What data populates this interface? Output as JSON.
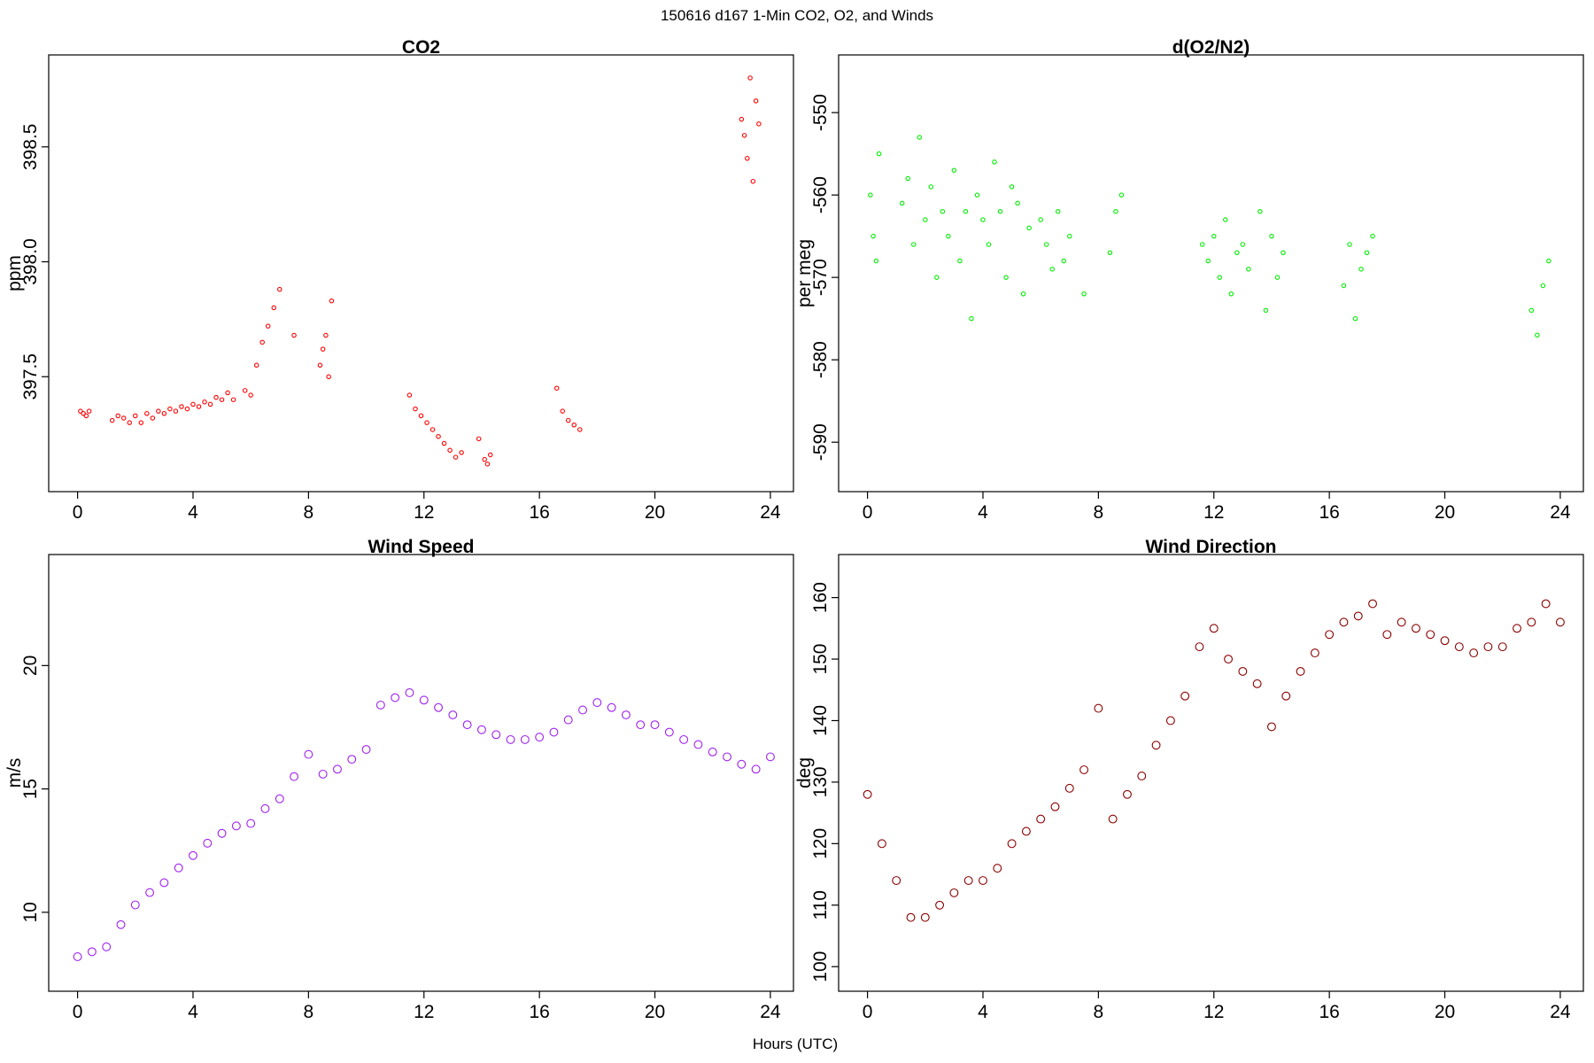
{
  "figure": {
    "title": "150616   d167   1-Min CO2, O2, and Winds",
    "xlabel": "Hours (UTC)"
  },
  "chart_data": [
    {
      "type": "scatter",
      "title": "CO2",
      "ylabel": "ppm",
      "color": "#ff0000",
      "xlim": [
        -1,
        24.8
      ],
      "ylim": [
        397.0,
        398.9
      ],
      "xticks": [
        "0",
        "4",
        "8",
        "12",
        "16",
        "20",
        "24"
      ],
      "yticks": [
        "397.5",
        "398.0",
        "398.5"
      ],
      "series": [
        {
          "x": [
            0.1,
            0.2,
            0.3,
            0.4,
            1.2,
            1.4,
            1.6,
            1.8,
            2.0,
            2.2,
            2.4,
            2.6,
            2.8,
            3.0,
            3.2,
            3.4,
            3.6,
            3.8,
            4.0,
            4.2,
            4.4,
            4.6,
            4.8,
            5.0,
            5.2,
            5.4,
            5.8,
            6.0,
            6.2,
            6.4,
            6.6,
            6.8,
            7.0,
            7.5,
            8.4,
            8.5,
            8.6,
            8.7,
            8.8,
            11.5,
            11.7,
            11.9,
            12.1,
            12.3,
            12.5,
            12.7,
            12.9,
            13.1,
            13.3,
            13.9,
            14.1,
            14.2,
            14.3,
            16.6,
            16.8,
            17.0,
            17.2,
            17.4,
            23.0,
            23.1,
            23.2,
            23.3,
            23.4,
            23.5,
            23.6
          ],
          "y": [
            397.35,
            397.34,
            397.33,
            397.35,
            397.31,
            397.33,
            397.32,
            397.3,
            397.33,
            397.3,
            397.34,
            397.32,
            397.35,
            397.34,
            397.36,
            397.35,
            397.37,
            397.36,
            397.38,
            397.37,
            397.39,
            397.38,
            397.41,
            397.4,
            397.43,
            397.4,
            397.44,
            397.42,
            397.55,
            397.65,
            397.72,
            397.8,
            397.88,
            397.68,
            397.55,
            397.62,
            397.68,
            397.5,
            397.83,
            397.42,
            397.36,
            397.33,
            397.3,
            397.27,
            397.24,
            397.21,
            397.18,
            397.15,
            397.17,
            397.23,
            397.14,
            397.12,
            397.16,
            397.45,
            397.35,
            397.31,
            397.29,
            397.27,
            398.62,
            398.55,
            398.45,
            398.8,
            398.35,
            398.7,
            398.6
          ]
        }
      ]
    },
    {
      "type": "scatter",
      "title": "d(O2/N2)",
      "ylabel": "per meg",
      "color": "#00ee00",
      "xlim": [
        -1,
        24.8
      ],
      "ylim": [
        -596,
        -543
      ],
      "xticks": [
        "0",
        "4",
        "8",
        "12",
        "16",
        "20",
        "24"
      ],
      "yticks": [
        "-590",
        "-580",
        "-570",
        "-560",
        "-550"
      ],
      "series": [
        {
          "x": [
            0.1,
            0.2,
            0.3,
            0.4,
            1.2,
            1.4,
            1.6,
            1.8,
            2.0,
            2.2,
            2.4,
            2.6,
            2.8,
            3.0,
            3.2,
            3.4,
            3.6,
            3.8,
            4.0,
            4.2,
            4.4,
            4.6,
            4.8,
            5.0,
            5.2,
            5.4,
            5.6,
            6.0,
            6.2,
            6.4,
            6.6,
            6.8,
            7.0,
            7.5,
            8.4,
            8.6,
            8.8,
            11.6,
            11.8,
            12.0,
            12.2,
            12.4,
            12.6,
            12.8,
            13.0,
            13.2,
            13.6,
            13.8,
            14.0,
            14.2,
            14.4,
            16.5,
            16.7,
            16.9,
            17.1,
            17.3,
            17.5,
            23.0,
            23.2,
            23.4,
            23.6
          ],
          "y": [
            -560,
            -565,
            -568,
            -555,
            -561,
            -558,
            -566,
            -553,
            -563,
            -559,
            -570,
            -562,
            -565,
            -557,
            -568,
            -562,
            -575,
            -560,
            -563,
            -566,
            -556,
            -562,
            -570,
            -559,
            -561,
            -572,
            -564,
            -563,
            -566,
            -569,
            -562,
            -568,
            -565,
            -572,
            -567,
            -562,
            -560,
            -566,
            -568,
            -565,
            -570,
            -563,
            -572,
            -567,
            -566,
            -569,
            -562,
            -574,
            -565,
            -570,
            -567,
            -571,
            -566,
            -575,
            -569,
            -567,
            -565,
            -574,
            -577,
            -571,
            -568
          ]
        }
      ]
    },
    {
      "type": "scatter",
      "title": "Wind Speed",
      "ylabel": "m/s",
      "color": "#a020f0",
      "xlim": [
        -1,
        24.8
      ],
      "ylim": [
        6.8,
        24.5
      ],
      "xticks": [
        "0",
        "4",
        "8",
        "12",
        "16",
        "20",
        "24"
      ],
      "yticks": [
        "10",
        "15",
        "20"
      ],
      "series": [
        {
          "x": [
            0,
            0.5,
            1,
            1.5,
            2,
            2.5,
            3,
            3.5,
            4,
            4.5,
            5,
            5.5,
            6,
            6.5,
            7,
            7.5,
            8,
            8.5,
            9,
            9.5,
            10,
            10.5,
            11,
            11.5,
            12,
            12.5,
            13,
            13.5,
            14,
            14.5,
            15,
            15.5,
            16,
            16.5,
            17,
            17.5,
            18,
            18.5,
            19,
            19.5,
            20,
            20.5,
            21,
            21.5,
            22,
            22.5,
            23,
            23.5,
            24
          ],
          "y": [
            8.2,
            8.4,
            8.6,
            9.5,
            10.3,
            10.8,
            11.2,
            11.8,
            12.3,
            12.8,
            13.2,
            13.5,
            13.6,
            14.2,
            14.6,
            15.5,
            16.4,
            15.6,
            15.8,
            16.2,
            16.6,
            18.4,
            18.7,
            18.9,
            18.6,
            18.3,
            18.0,
            17.6,
            17.4,
            17.2,
            17.0,
            17.0,
            17.1,
            17.3,
            17.8,
            18.2,
            18.5,
            18.3,
            18.0,
            17.6,
            17.6,
            17.3,
            17.0,
            16.8,
            16.5,
            16.3,
            16.0,
            15.8,
            16.3
          ]
        }
      ]
    },
    {
      "type": "scatter",
      "title": "Wind Direction",
      "ylabel": "deg",
      "color": "#8b0000",
      "xlim": [
        -1,
        24.8
      ],
      "ylim": [
        96,
        167
      ],
      "xticks": [
        "0",
        "4",
        "8",
        "12",
        "16",
        "20",
        "24"
      ],
      "yticks": [
        "100",
        "110",
        "120",
        "130",
        "140",
        "150",
        "160"
      ],
      "series": [
        {
          "x": [
            0,
            0.5,
            1,
            1.5,
            2,
            2.5,
            3,
            3.5,
            4,
            4.5,
            5,
            5.5,
            6,
            6.5,
            7,
            7.5,
            8,
            8.5,
            9,
            9.5,
            10,
            10.5,
            11,
            11.5,
            12,
            12.5,
            13,
            13.5,
            14,
            14.5,
            15,
            15.5,
            16,
            16.5,
            17,
            17.5,
            18,
            18.5,
            19,
            19.5,
            20,
            20.5,
            21,
            21.5,
            22,
            22.5,
            23,
            23.5,
            24
          ],
          "y": [
            128,
            120,
            114,
            108,
            108,
            110,
            112,
            114,
            114,
            116,
            120,
            122,
            124,
            126,
            129,
            132,
            142,
            124,
            128,
            131,
            136,
            140,
            144,
            152,
            155,
            150,
            148,
            146,
            139,
            144,
            148,
            151,
            154,
            156,
            157,
            159,
            154,
            156,
            155,
            154,
            153,
            152,
            151,
            152,
            152,
            155,
            156,
            159,
            156
          ]
        }
      ]
    }
  ]
}
